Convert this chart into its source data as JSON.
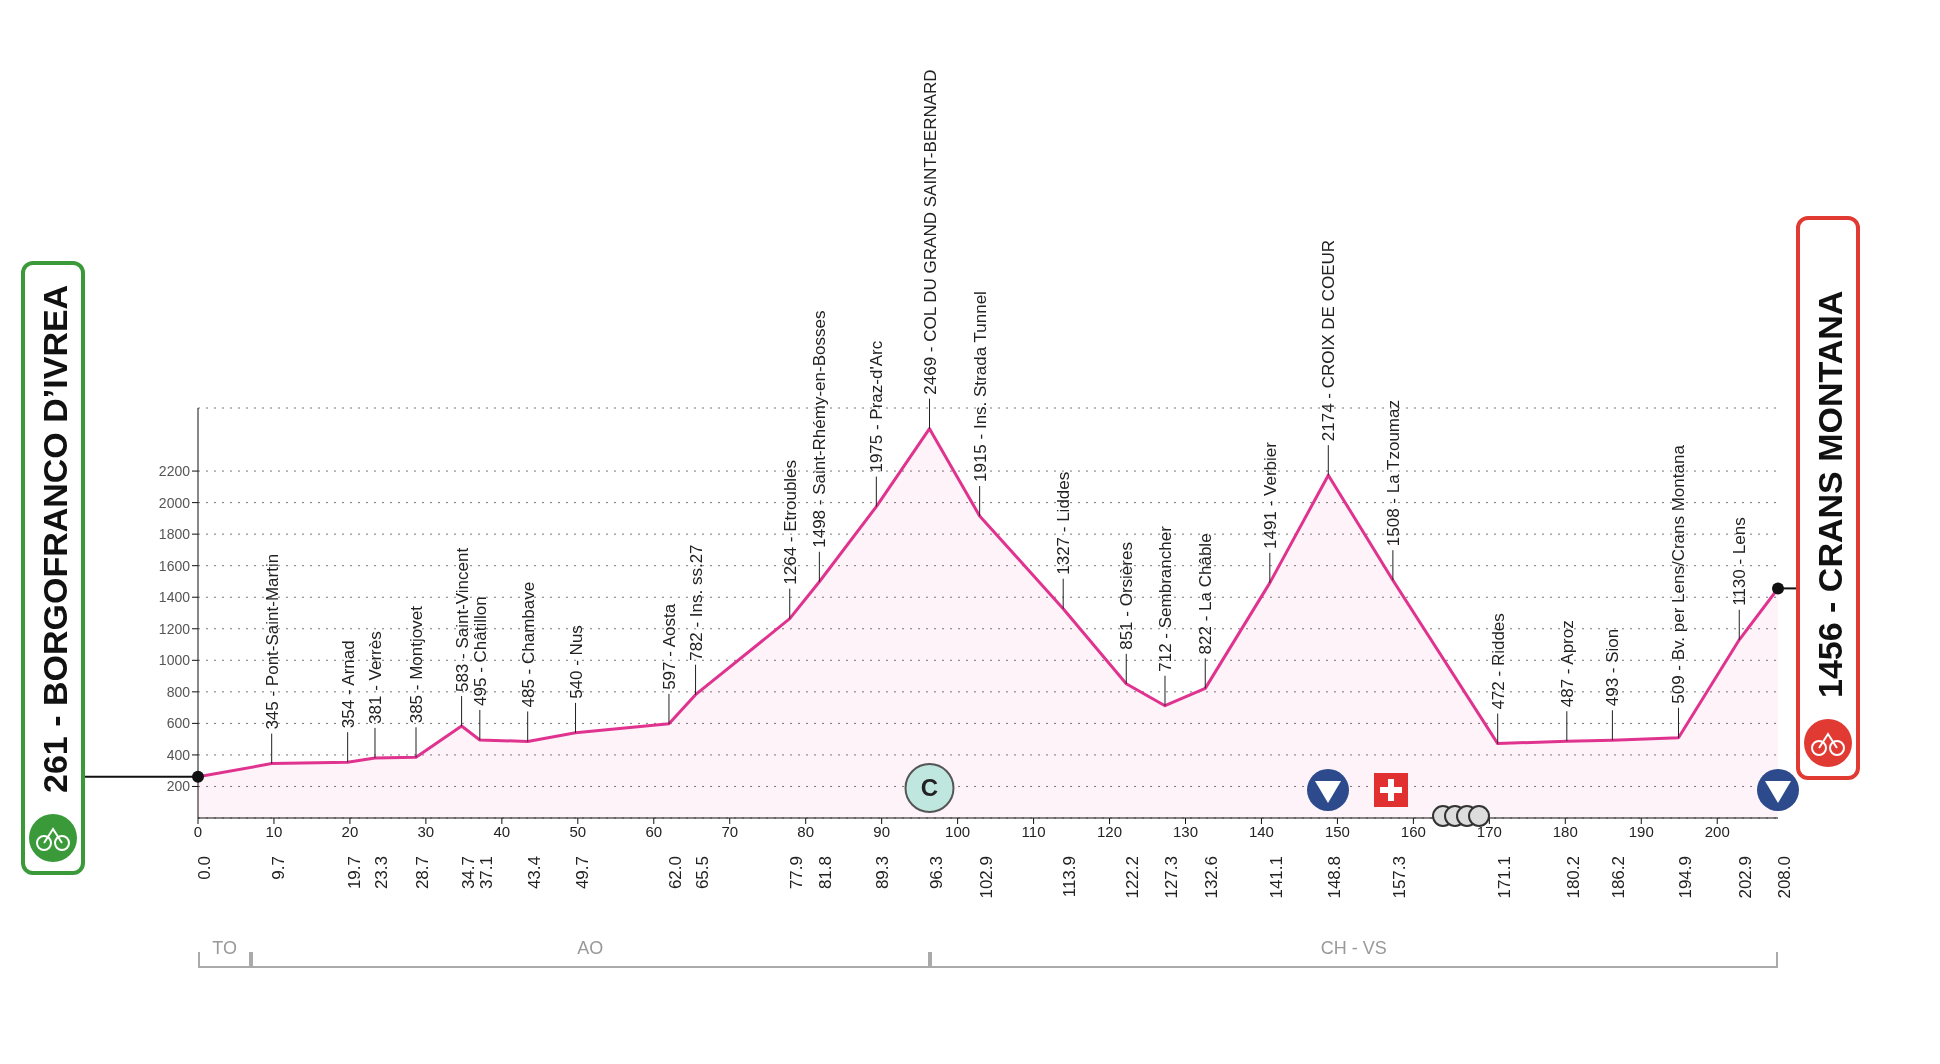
{
  "chart_data": {
    "type": "area",
    "x": [
      0,
      9.7,
      19.7,
      23.3,
      28.7,
      34.7,
      37.1,
      43.4,
      49.7,
      62.0,
      65.5,
      77.9,
      81.8,
      89.3,
      96.3,
      102.9,
      113.9,
      122.2,
      127.3,
      132.6,
      141.1,
      148.8,
      157.3,
      171.1,
      180.2,
      186.2,
      194.9,
      202.9,
      208.0
    ],
    "series": [
      {
        "color": "#e0338f",
        "values": [
          261,
          345,
          354,
          381,
          385,
          583,
          495,
          485,
          540,
          597,
          782,
          1264,
          1498,
          1975,
          2469,
          1915,
          1327,
          851,
          712,
          822,
          1491,
          2174,
          1508,
          472,
          487,
          493,
          509,
          1130,
          1456
        ]
      }
    ],
    "xlim": [
      0,
      208
    ],
    "xticks": [
      0,
      10,
      20,
      30,
      40,
      50,
      60,
      70,
      80,
      90,
      100,
      110,
      120,
      130,
      140,
      150,
      160,
      170,
      180,
      190,
      200
    ],
    "x2lim": [
      0,
      208
    ],
    "x2ticks": [
      {
        "value": 0,
        "label": "0.0"
      },
      9.7,
      19.7,
      23.3,
      28.7,
      34.7,
      37.1,
      43.4,
      49.7,
      {
        "value": 62,
        "label": "62.0"
      },
      65.5,
      77.9,
      81.8,
      89.3,
      96.3,
      102.9,
      113.9,
      122.2,
      127.3,
      132.6,
      141.1,
      148.8,
      157.3,
      171.1,
      180.2,
      186.2,
      194.9,
      202.9,
      {
        "value": 208,
        "label": "208.0"
      }
    ],
    "ylim": [
      0,
      2600
    ],
    "yticks": [
      200,
      400,
      600,
      800,
      1000,
      1200,
      1400,
      1600,
      1800,
      2000,
      2200
    ],
    "grid": "y",
    "annotations": [
      {
        "text": "261 - BORGOFRANCO D’IVREA",
        "x": 0,
        "y": 261
      },
      {
        "text": "345 - Pont-Saint-Martin",
        "x": 9.7,
        "y": 345
      },
      {
        "text": "354 - Arnad",
        "x": 19.7,
        "y": 354
      },
      {
        "text": "381 - Verrès",
        "x": 23.3,
        "y": 381
      },
      {
        "text": "385 - Montjovet",
        "x": 28.7,
        "y": 385
      },
      {
        "text": "583 - Saint-Vincent",
        "x": 34.7,
        "y": 583
      },
      {
        "text": "495 - Châtillon",
        "x": 37.1,
        "y": 495
      },
      {
        "text": "485 - Chambave",
        "x": 43.4,
        "y": 485
      },
      {
        "text": "540 - Nus",
        "x": 49.7,
        "y": 540
      },
      {
        "text": "597 - Aosta",
        "x": 62.0,
        "y": 597
      },
      {
        "text": "782 - Ins. ss.27",
        "x": 65.5,
        "y": 782
      },
      {
        "text": "1264 - Etroubles",
        "x": 77.9,
        "y": 1264
      },
      {
        "text": "1498 - Saint-Rhémy-en-Bosses",
        "x": 81.8,
        "y": 1498
      },
      {
        "text": "1975 - Praz-d'Arc",
        "x": 89.3,
        "y": 1975
      },
      {
        "text": "2469 - COL DU GRAND SAINT-BERNARD",
        "x": 96.3,
        "y": 2469
      },
      {
        "text": "1915 - Ins. Strada Tunnel",
        "x": 102.9,
        "y": 1915
      },
      {
        "text": "1327 - Liddes",
        "x": 113.9,
        "y": 1327
      },
      {
        "text": "851 - Orsières",
        "x": 122.2,
        "y": 851
      },
      {
        "text": "712 - Sembrancher",
        "x": 127.3,
        "y": 712
      },
      {
        "text": "822 - La Châble",
        "x": 132.6,
        "y": 822
      },
      {
        "text": "1491 - Verbier",
        "x": 141.1,
        "y": 1491
      },
      {
        "text": "2174 - CROIX DE COEUR",
        "x": 148.8,
        "y": 2174
      },
      {
        "text": "1508 - La Tzoumaz",
        "x": 157.3,
        "y": 1508
      },
      {
        "text": "472 - Riddes",
        "x": 171.1,
        "y": 472
      },
      {
        "text": "487 - Aproz",
        "x": 180.2,
        "y": 487
      },
      {
        "text": "493 - Sion",
        "x": 186.2,
        "y": 493
      },
      {
        "text": "509 - Bv. per Lens/Crans Montana",
        "x": 194.9,
        "y": 509
      },
      {
        "text": "1130 - Lens",
        "x": 202.9,
        "y": 1130
      },
      {
        "text": "1456 - CRANS MONTANA",
        "x": 208.0,
        "y": 1456
      },
      {
        "text": "C",
        "x": 96.3,
        "y": 0
      },
      "TO",
      "AO",
      "CH - VS"
    ]
  }
}
